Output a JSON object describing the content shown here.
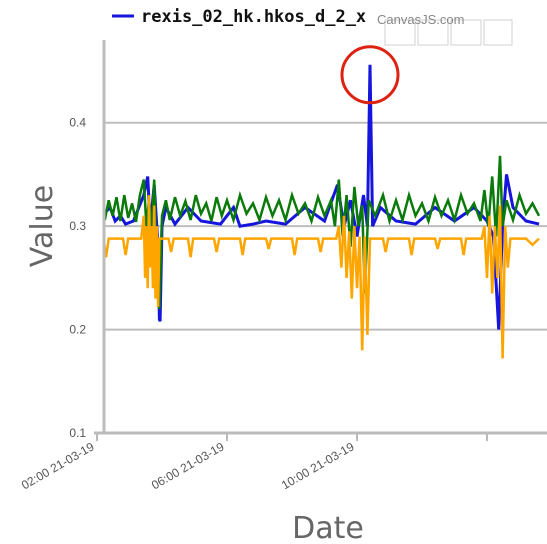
{
  "chart_data": {
    "type": "line",
    "xlabel": "Date",
    "ylabel": "Value",
    "x_ticks": [
      "02:00 21-03-19",
      "06:00 21-03-19",
      "10:00 21-03-19",
      ""
    ],
    "y_ticks": [
      0.1,
      0.2,
      0.3,
      0.4
    ],
    "ylim": [
      0.1,
      0.48
    ],
    "grid": true,
    "legend": {
      "entries": [
        "rexis_02_hk.hkos_d_2_x"
      ],
      "placement": "top"
    },
    "credit": "CanvasJS.com",
    "series": [
      {
        "name": "rexis_02_hk.hkos_d_2_x",
        "color": "#1515dd",
        "points": [
          [
            0.0,
            0.305
          ],
          [
            0.1,
            0.318
          ],
          [
            0.14,
            0.305
          ],
          [
            0.18,
            0.31
          ],
          [
            0.22,
            0.302
          ],
          [
            0.28,
            0.305
          ],
          [
            0.36,
            0.33
          ],
          [
            0.39,
            0.348
          ],
          [
            0.41,
            0.3
          ],
          [
            0.44,
            0.34
          ],
          [
            0.47,
            0.28
          ],
          [
            0.48,
            0.21
          ],
          [
            0.485,
            0.208
          ],
          [
            0.5,
            0.3
          ],
          [
            0.53,
            0.318
          ],
          [
            0.6,
            0.302
          ],
          [
            0.7,
            0.318
          ],
          [
            0.8,
            0.305
          ],
          [
            0.95,
            0.302
          ],
          [
            1.05,
            0.318
          ],
          [
            1.1,
            0.3
          ],
          [
            1.2,
            0.302
          ],
          [
            1.3,
            0.305
          ],
          [
            1.45,
            0.302
          ],
          [
            1.6,
            0.318
          ],
          [
            1.75,
            0.305
          ],
          [
            1.85,
            0.34
          ],
          [
            1.9,
            0.3
          ],
          [
            1.95,
            0.325
          ],
          [
            2.0,
            0.29
          ],
          [
            2.05,
            0.33
          ],
          [
            2.08,
            0.3
          ],
          [
            2.1,
            0.456
          ],
          [
            2.12,
            0.3
          ],
          [
            2.18,
            0.318
          ],
          [
            2.3,
            0.305
          ],
          [
            2.45,
            0.302
          ],
          [
            2.6,
            0.318
          ],
          [
            2.75,
            0.305
          ],
          [
            2.9,
            0.318
          ],
          [
            3.0,
            0.305
          ],
          [
            3.05,
            0.29
          ],
          [
            3.09,
            0.2
          ],
          [
            3.12,
            0.3
          ],
          [
            3.15,
            0.35
          ],
          [
            3.2,
            0.318
          ],
          [
            3.3,
            0.305
          ],
          [
            3.4,
            0.302
          ]
        ]
      },
      {
        "color": "#0a7a0a",
        "points": [
          [
            0.0,
            0.312
          ],
          [
            0.03,
            0.322
          ],
          [
            0.06,
            0.306
          ],
          [
            0.09,
            0.325
          ],
          [
            0.12,
            0.31
          ],
          [
            0.15,
            0.328
          ],
          [
            0.18,
            0.305
          ],
          [
            0.21,
            0.33
          ],
          [
            0.24,
            0.308
          ],
          [
            0.27,
            0.322
          ],
          [
            0.3,
            0.304
          ],
          [
            0.33,
            0.33
          ],
          [
            0.36,
            0.345
          ],
          [
            0.38,
            0.3
          ],
          [
            0.4,
            0.325
          ],
          [
            0.42,
            0.295
          ],
          [
            0.44,
            0.345
          ],
          [
            0.46,
            0.26
          ],
          [
            0.48,
            0.22
          ],
          [
            0.5,
            0.31
          ],
          [
            0.53,
            0.325
          ],
          [
            0.56,
            0.306
          ],
          [
            0.6,
            0.328
          ],
          [
            0.64,
            0.31
          ],
          [
            0.68,
            0.324
          ],
          [
            0.72,
            0.306
          ],
          [
            0.76,
            0.33
          ],
          [
            0.8,
            0.312
          ],
          [
            0.84,
            0.322
          ],
          [
            0.88,
            0.305
          ],
          [
            0.92,
            0.328
          ],
          [
            0.96,
            0.31
          ],
          [
            1.0,
            0.325
          ],
          [
            1.05,
            0.306
          ],
          [
            1.1,
            0.33
          ],
          [
            1.15,
            0.312
          ],
          [
            1.2,
            0.322
          ],
          [
            1.25,
            0.306
          ],
          [
            1.3,
            0.328
          ],
          [
            1.35,
            0.31
          ],
          [
            1.4,
            0.325
          ],
          [
            1.45,
            0.306
          ],
          [
            1.5,
            0.33
          ],
          [
            1.55,
            0.312
          ],
          [
            1.6,
            0.322
          ],
          [
            1.65,
            0.305
          ],
          [
            1.7,
            0.328
          ],
          [
            1.75,
            0.31
          ],
          [
            1.8,
            0.325
          ],
          [
            1.83,
            0.3
          ],
          [
            1.86,
            0.345
          ],
          [
            1.89,
            0.29
          ],
          [
            1.92,
            0.33
          ],
          [
            1.95,
            0.28
          ],
          [
            1.98,
            0.338
          ],
          [
            2.01,
            0.3
          ],
          [
            2.04,
            0.32
          ],
          [
            2.06,
            0.235
          ],
          [
            2.09,
            0.325
          ],
          [
            2.14,
            0.31
          ],
          [
            2.2,
            0.33
          ],
          [
            2.25,
            0.305
          ],
          [
            2.3,
            0.325
          ],
          [
            2.35,
            0.306
          ],
          [
            2.4,
            0.33
          ],
          [
            2.45,
            0.31
          ],
          [
            2.5,
            0.322
          ],
          [
            2.55,
            0.305
          ],
          [
            2.6,
            0.328
          ],
          [
            2.65,
            0.31
          ],
          [
            2.7,
            0.325
          ],
          [
            2.75,
            0.306
          ],
          [
            2.8,
            0.33
          ],
          [
            2.85,
            0.312
          ],
          [
            2.9,
            0.322
          ],
          [
            2.95,
            0.305
          ],
          [
            2.98,
            0.335
          ],
          [
            3.01,
            0.3
          ],
          [
            3.04,
            0.348
          ],
          [
            3.07,
            0.29
          ],
          [
            3.1,
            0.368
          ],
          [
            3.12,
            0.3
          ],
          [
            3.15,
            0.325
          ],
          [
            3.2,
            0.306
          ],
          [
            3.25,
            0.33
          ],
          [
            3.3,
            0.312
          ],
          [
            3.35,
            0.322
          ],
          [
            3.4,
            0.31
          ]
        ]
      },
      {
        "color": "#ffa500",
        "points": [
          [
            0.0,
            0.288
          ],
          [
            0.05,
            0.288
          ],
          [
            0.07,
            0.27
          ],
          [
            0.09,
            0.288
          ],
          [
            0.2,
            0.288
          ],
          [
            0.22,
            0.272
          ],
          [
            0.24,
            0.288
          ],
          [
            0.34,
            0.288
          ],
          [
            0.36,
            0.31
          ],
          [
            0.37,
            0.25
          ],
          [
            0.38,
            0.3
          ],
          [
            0.39,
            0.24
          ],
          [
            0.4,
            0.33
          ],
          [
            0.41,
            0.26
          ],
          [
            0.42,
            0.3
          ],
          [
            0.43,
            0.24
          ],
          [
            0.44,
            0.32
          ],
          [
            0.45,
            0.23
          ],
          [
            0.46,
            0.3
          ],
          [
            0.47,
            0.222
          ],
          [
            0.48,
            0.288
          ],
          [
            0.55,
            0.288
          ],
          [
            0.57,
            0.275
          ],
          [
            0.59,
            0.288
          ],
          [
            0.7,
            0.288
          ],
          [
            0.72,
            0.27
          ],
          [
            0.74,
            0.288
          ],
          [
            0.9,
            0.288
          ],
          [
            0.92,
            0.275
          ],
          [
            0.94,
            0.288
          ],
          [
            1.1,
            0.288
          ],
          [
            1.12,
            0.272
          ],
          [
            1.14,
            0.288
          ],
          [
            1.3,
            0.288
          ],
          [
            1.32,
            0.278
          ],
          [
            1.34,
            0.288
          ],
          [
            1.5,
            0.288
          ],
          [
            1.52,
            0.272
          ],
          [
            1.54,
            0.288
          ],
          [
            1.7,
            0.288
          ],
          [
            1.72,
            0.275
          ],
          [
            1.74,
            0.288
          ],
          [
            1.84,
            0.288
          ],
          [
            1.86,
            0.3
          ],
          [
            1.88,
            0.26
          ],
          [
            1.9,
            0.31
          ],
          [
            1.92,
            0.25
          ],
          [
            1.94,
            0.295
          ],
          [
            1.96,
            0.23
          ],
          [
            1.98,
            0.3
          ],
          [
            2.0,
            0.24
          ],
          [
            2.02,
            0.29
          ],
          [
            2.04,
            0.18
          ],
          [
            2.06,
            0.29
          ],
          [
            2.08,
            0.195
          ],
          [
            2.1,
            0.288
          ],
          [
            2.2,
            0.288
          ],
          [
            2.22,
            0.275
          ],
          [
            2.24,
            0.288
          ],
          [
            2.4,
            0.288
          ],
          [
            2.42,
            0.272
          ],
          [
            2.44,
            0.288
          ],
          [
            2.6,
            0.288
          ],
          [
            2.62,
            0.278
          ],
          [
            2.64,
            0.288
          ],
          [
            2.8,
            0.288
          ],
          [
            2.82,
            0.272
          ],
          [
            2.84,
            0.288
          ],
          [
            2.96,
            0.288
          ],
          [
            2.98,
            0.3
          ],
          [
            3.0,
            0.25
          ],
          [
            3.02,
            0.31
          ],
          [
            3.04,
            0.235
          ],
          [
            3.06,
            0.3
          ],
          [
            3.08,
            0.25
          ],
          [
            3.1,
            0.32
          ],
          [
            3.12,
            0.172
          ],
          [
            3.14,
            0.3
          ],
          [
            3.16,
            0.26
          ],
          [
            3.18,
            0.288
          ],
          [
            3.3,
            0.288
          ],
          [
            3.35,
            0.282
          ],
          [
            3.4,
            0.288
          ]
        ]
      }
    ],
    "highlight": {
      "x": 2.1,
      "y": 0.456,
      "color": "#dd2211"
    }
  }
}
